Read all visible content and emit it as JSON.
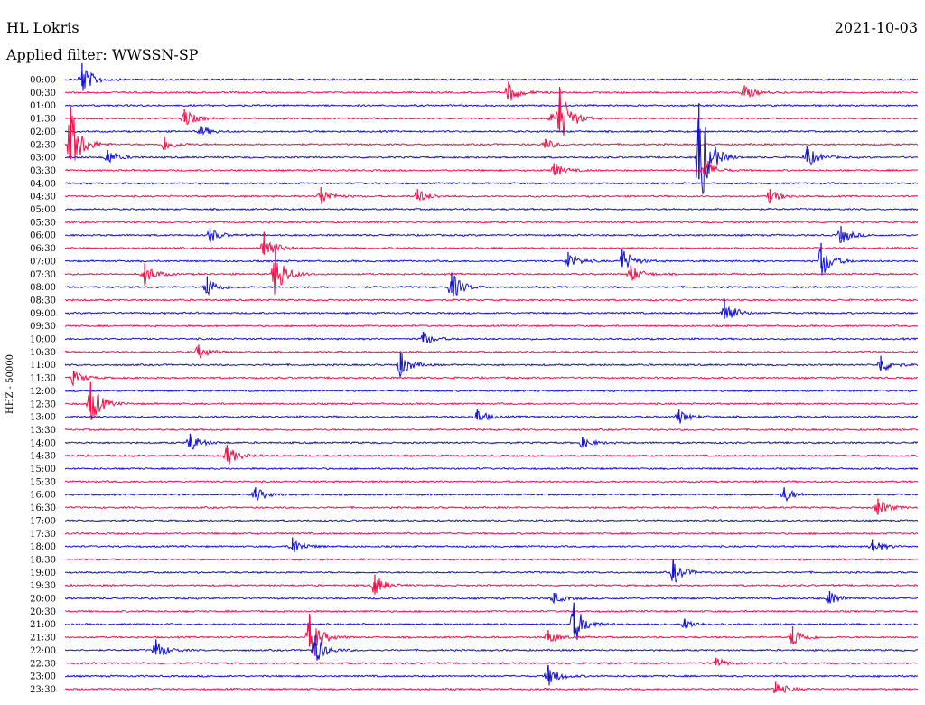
{
  "header": {
    "station": "HL Lokris",
    "date": "2021-10-03",
    "filter": "Applied filter: WWSSN-SP"
  },
  "chart_data": {
    "type": "line",
    "title": "HL Lokris",
    "subtitle": "Applied filter: WWSSN-SP",
    "date": "2021-10-03",
    "ylabel": "HHZ - 50000",
    "colors": {
      "blue": "#1010d8",
      "red": "#f0104a"
    },
    "color_cycle": [
      "blue",
      "red"
    ],
    "row_labels": [
      "00:00",
      "00:30",
      "01:00",
      "01:30",
      "02:00",
      "02:30",
      "03:00",
      "03:30",
      "04:00",
      "04:30",
      "05:00",
      "05:30",
      "06:00",
      "06:30",
      "07:00",
      "07:30",
      "08:00",
      "08:30",
      "09:00",
      "09:30",
      "10:00",
      "10:30",
      "11:00",
      "11:30",
      "12:00",
      "12:30",
      "13:00",
      "13:30",
      "14:00",
      "14:30",
      "15:00",
      "15:30",
      "16:00",
      "16:30",
      "17:00",
      "17:30",
      "18:00",
      "18:30",
      "19:00",
      "19:30",
      "20:00",
      "20:30",
      "21:00",
      "21:30",
      "22:00",
      "22:30",
      "23:00",
      "23:30"
    ],
    "row_minutes": 30,
    "events": [
      {
        "row": 0,
        "t": 0.6,
        "amp": 18
      },
      {
        "row": 1,
        "t": 15.6,
        "amp": 12
      },
      {
        "row": 1,
        "t": 23.9,
        "amp": 8
      },
      {
        "row": 3,
        "t": 4.2,
        "amp": 10
      },
      {
        "row": 3,
        "t": 17.1,
        "amp": 5
      },
      {
        "row": 3,
        "t": 17.4,
        "amp": 35
      },
      {
        "row": 4,
        "t": 4.8,
        "amp": 6
      },
      {
        "row": 5,
        "t": 0.2,
        "amp": 42
      },
      {
        "row": 5,
        "t": 3.5,
        "amp": 8
      },
      {
        "row": 5,
        "t": 16.9,
        "amp": 6
      },
      {
        "row": 6,
        "t": 1.5,
        "amp": 8
      },
      {
        "row": 6,
        "t": 22.3,
        "amp": 70
      },
      {
        "row": 6,
        "t": 26.1,
        "amp": 12
      },
      {
        "row": 7,
        "t": 17.2,
        "amp": 8
      },
      {
        "row": 7,
        "t": 22.5,
        "amp": 12
      },
      {
        "row": 9,
        "t": 9.0,
        "amp": 10
      },
      {
        "row": 9,
        "t": 12.4,
        "amp": 8
      },
      {
        "row": 9,
        "t": 24.8,
        "amp": 8
      },
      {
        "row": 12,
        "t": 5.1,
        "amp": 8
      },
      {
        "row": 12,
        "t": 27.3,
        "amp": 10
      },
      {
        "row": 13,
        "t": 7.0,
        "amp": 18
      },
      {
        "row": 14,
        "t": 17.7,
        "amp": 10
      },
      {
        "row": 14,
        "t": 19.6,
        "amp": 14
      },
      {
        "row": 14,
        "t": 26.6,
        "amp": 20
      },
      {
        "row": 15,
        "t": 2.8,
        "amp": 12
      },
      {
        "row": 15,
        "t": 7.4,
        "amp": 28
      },
      {
        "row": 15,
        "t": 19.9,
        "amp": 10
      },
      {
        "row": 16,
        "t": 5.0,
        "amp": 12
      },
      {
        "row": 16,
        "t": 13.6,
        "amp": 16
      },
      {
        "row": 18,
        "t": 23.2,
        "amp": 16
      },
      {
        "row": 20,
        "t": 12.6,
        "amp": 8
      },
      {
        "row": 21,
        "t": 4.7,
        "amp": 8
      },
      {
        "row": 22,
        "t": 11.8,
        "amp": 14
      },
      {
        "row": 22,
        "t": 28.7,
        "amp": 10
      },
      {
        "row": 23,
        "t": 0.3,
        "amp": 8
      },
      {
        "row": 25,
        "t": 0.9,
        "amp": 24
      },
      {
        "row": 26,
        "t": 14.5,
        "amp": 8
      },
      {
        "row": 26,
        "t": 21.6,
        "amp": 8
      },
      {
        "row": 28,
        "t": 4.4,
        "amp": 10
      },
      {
        "row": 28,
        "t": 18.2,
        "amp": 6
      },
      {
        "row": 29,
        "t": 5.7,
        "amp": 12
      },
      {
        "row": 32,
        "t": 6.7,
        "amp": 8
      },
      {
        "row": 32,
        "t": 25.3,
        "amp": 8
      },
      {
        "row": 33,
        "t": 28.6,
        "amp": 10
      },
      {
        "row": 36,
        "t": 8.0,
        "amp": 10
      },
      {
        "row": 36,
        "t": 28.4,
        "amp": 8
      },
      {
        "row": 38,
        "t": 21.4,
        "amp": 14
      },
      {
        "row": 39,
        "t": 10.9,
        "amp": 12
      },
      {
        "row": 40,
        "t": 17.2,
        "amp": 6
      },
      {
        "row": 40,
        "t": 26.9,
        "amp": 8
      },
      {
        "row": 42,
        "t": 17.9,
        "amp": 24
      },
      {
        "row": 42,
        "t": 21.8,
        "amp": 6
      },
      {
        "row": 43,
        "t": 8.6,
        "amp": 26
      },
      {
        "row": 43,
        "t": 17.0,
        "amp": 8
      },
      {
        "row": 43,
        "t": 25.6,
        "amp": 12
      },
      {
        "row": 44,
        "t": 3.2,
        "amp": 12
      },
      {
        "row": 44,
        "t": 8.8,
        "amp": 16
      },
      {
        "row": 45,
        "t": 22.9,
        "amp": 6
      },
      {
        "row": 46,
        "t": 17.0,
        "amp": 12
      },
      {
        "row": 47,
        "t": 25.0,
        "amp": 8
      }
    ]
  }
}
